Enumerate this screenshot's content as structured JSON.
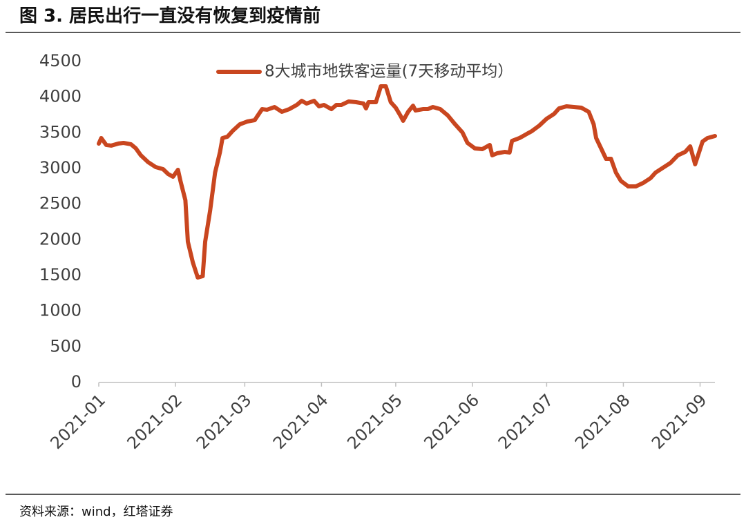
{
  "header": {
    "title": "图 3. 居民出行一直没有恢复到疫情前"
  },
  "chart_data": {
    "type": "line",
    "x": [
      0,
      1,
      3,
      5,
      8,
      10,
      13,
      15,
      17,
      20,
      23,
      26,
      28,
      30,
      32,
      33,
      35,
      36,
      38,
      40,
      42,
      43,
      45,
      47,
      49,
      50,
      52,
      54,
      57,
      60,
      63,
      66,
      68,
      71,
      74,
      77,
      80,
      82,
      84,
      87,
      89,
      91,
      94,
      96,
      98,
      101,
      104,
      107,
      108,
      109,
      112,
      114,
      116,
      118,
      120,
      122,
      123,
      125,
      127,
      128,
      131,
      133,
      135,
      138,
      141,
      144,
      147,
      149,
      152,
      155,
      158,
      159,
      161,
      164,
      166,
      167,
      170,
      172,
      175,
      178,
      181,
      184,
      186,
      189,
      192,
      195,
      198,
      200,
      201,
      203,
      205,
      207,
      209,
      211,
      214,
      217,
      220,
      223,
      225,
      228,
      231,
      234,
      237,
      239,
      241,
      244,
      246,
      249
    ],
    "series": [
      {
        "name": "8大城市地铁客运量(7天移动平均）",
        "color": "#c9461f",
        "values": [
          3348,
          3426,
          3330,
          3320,
          3350,
          3358,
          3339,
          3281,
          3184,
          3087,
          3019,
          2990,
          2923,
          2884,
          2981,
          2826,
          2555,
          1974,
          1684,
          1471,
          1490,
          1974,
          2410,
          2942,
          3232,
          3426,
          3445,
          3523,
          3619,
          3658,
          3677,
          3832,
          3823,
          3861,
          3794,
          3832,
          3890,
          3948,
          3910,
          3948,
          3871,
          3890,
          3832,
          3890,
          3890,
          3939,
          3929,
          3910,
          3842,
          3929,
          3929,
          4152,
          4152,
          3929,
          3852,
          3735,
          3668,
          3793,
          3880,
          3813,
          3832,
          3832,
          3861,
          3832,
          3745,
          3619,
          3503,
          3358,
          3281,
          3271,
          3329,
          3184,
          3213,
          3232,
          3223,
          3387,
          3426,
          3465,
          3523,
          3600,
          3697,
          3765,
          3842,
          3871,
          3861,
          3852,
          3794,
          3619,
          3426,
          3281,
          3135,
          3135,
          2942,
          2826,
          2748,
          2748,
          2797,
          2865,
          2942,
          3010,
          3077,
          3184,
          3232,
          3310,
          3058,
          3377,
          3426,
          3455
        ]
      }
    ],
    "xlim": [
      0,
      249
    ],
    "xticks": [
      {
        "value": 0,
        "label": "2021-01"
      },
      {
        "value": 31,
        "label": "2021-02"
      },
      {
        "value": 59,
        "label": "2021-03"
      },
      {
        "value": 90,
        "label": "2021-04"
      },
      {
        "value": 120,
        "label": "2021-05"
      },
      {
        "value": 151,
        "label": "2021-06"
      },
      {
        "value": 181,
        "label": "2021-07"
      },
      {
        "value": 212,
        "label": "2021-08"
      },
      {
        "value": 243,
        "label": "2021-09"
      }
    ],
    "ylim": [
      0,
      4500
    ],
    "yticks": [
      0,
      500,
      1000,
      1500,
      2000,
      2500,
      3000,
      3500,
      4000,
      4500
    ]
  },
  "footer": {
    "source": "资料来源：wind，红塔证券"
  }
}
